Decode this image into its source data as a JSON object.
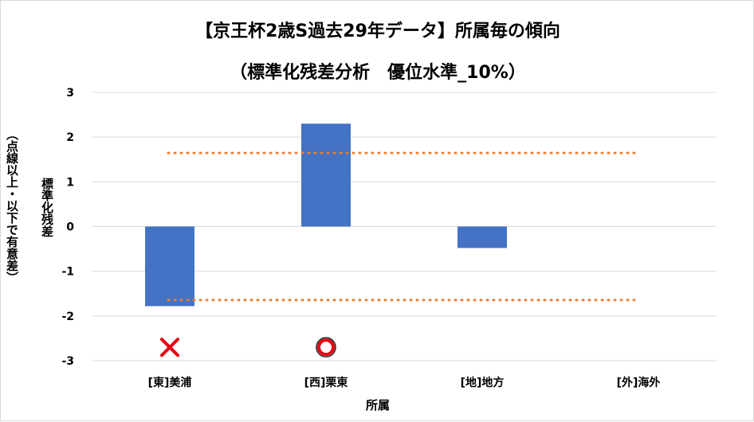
{
  "title_line1": "【京王杯2歳S過去29年データ】所属毎の傾向",
  "title_line2": "（標準化残差分析　優位水準_10%）",
  "ylabel_main": "標準化残差",
  "ylabel_sub": "（点線以上・以下で有意差）",
  "xlabel": "所属",
  "colors": {
    "bar": "#4472c4",
    "threshold": "#ed7d31",
    "cross": "#e60012",
    "circle": "#e60012",
    "grid": "#d9d9d9"
  },
  "chart_data": {
    "type": "bar",
    "title": "【京王杯2歳S過去29年データ】所属毎の傾向（標準化残差分析　優位水準_10%）",
    "xlabel": "所属",
    "ylabel": "標準化残差（点線以上・以下で有意差）",
    "categories": [
      "[東]美浦",
      "[西]栗東",
      "[地]地方",
      "[外]海外"
    ],
    "values": [
      -1.78,
      2.3,
      -0.48,
      0
    ],
    "ylim": [
      -3,
      3
    ],
    "yticks": [
      "3",
      "2",
      "1",
      "0",
      "-1",
      "-2",
      "-3"
    ],
    "yticks_values": [
      3,
      2,
      1,
      0,
      -1,
      -2,
      -3
    ],
    "thresholds": [
      1.645,
      -1.645
    ],
    "grid": true,
    "markers": [
      {
        "category": "[東]美浦",
        "symbol": "cross-icon",
        "y": -2.7
      },
      {
        "category": "[西]栗東",
        "symbol": "circle-icon",
        "y": -2.7
      }
    ]
  }
}
